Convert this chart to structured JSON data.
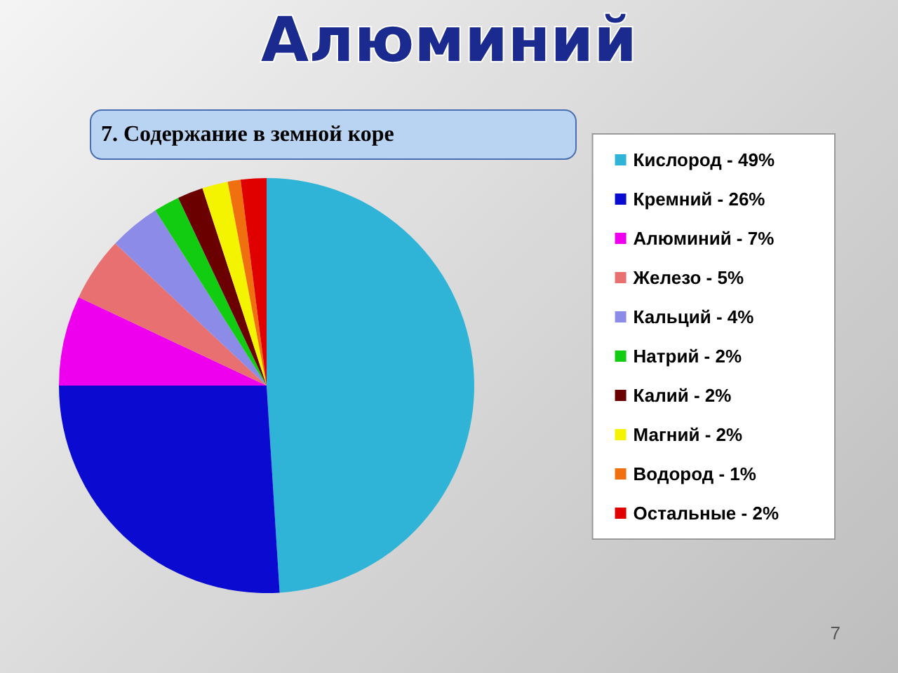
{
  "chart_data": {
    "type": "pie",
    "title": "Алюминий",
    "subtitle": "7. Содержание в земной коре",
    "categories": [
      "Кислород - 49%",
      "Кремний - 26%",
      "Алюминий - 7%",
      "Железо - 5%",
      "Кальций - 4%",
      "Натрий - 2%",
      "Калий - 2%",
      "Магний - 2%",
      "Водород - 1%",
      "Остальные - 2%"
    ],
    "values": [
      49,
      26,
      7,
      5,
      4,
      2,
      2,
      2,
      1,
      2
    ],
    "colors": [
      "#2fb4d8",
      "#0a0ad0",
      "#ee00ee",
      "#e87070",
      "#8c8ce8",
      "#11cc11",
      "#6a0000",
      "#f4f400",
      "#f07010",
      "#e00000"
    ],
    "legend": "right",
    "annotations": [
      "7"
    ]
  }
}
